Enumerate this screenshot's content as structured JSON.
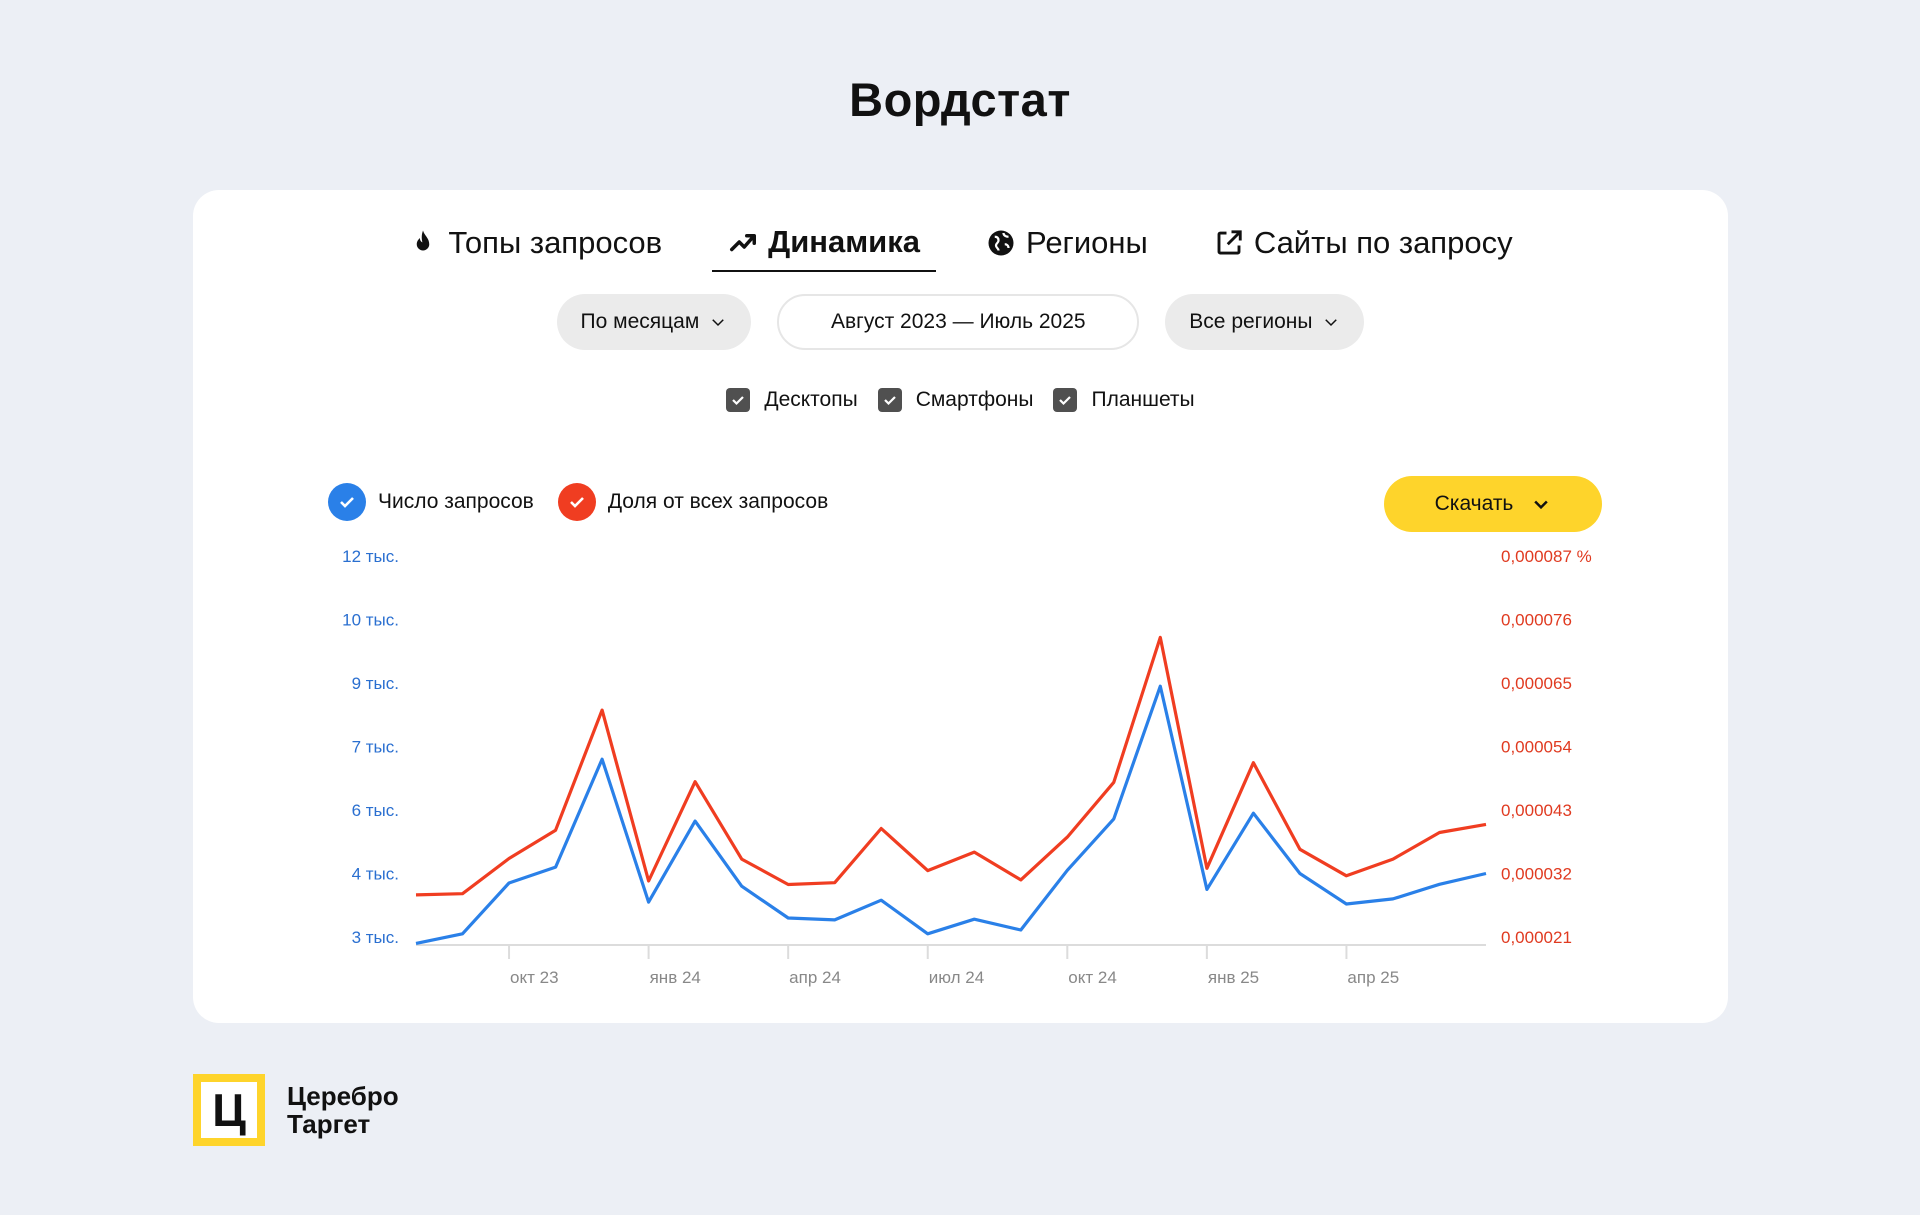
{
  "page": {
    "title": "Вордстат"
  },
  "tabs": [
    {
      "label": "Топы запросов",
      "icon": "fire-icon"
    },
    {
      "label": "Динамика",
      "icon": "trend-up-icon",
      "active": true
    },
    {
      "label": "Регионы",
      "icon": "globe-icon"
    },
    {
      "label": "Сайты по запросу",
      "icon": "external-link-icon"
    }
  ],
  "filters": {
    "period": "По месяцам",
    "range": "Август 2023 — Июль 2025",
    "region": "Все регионы"
  },
  "devices": [
    {
      "label": "Десктопы",
      "checked": true
    },
    {
      "label": "Смартфоны",
      "checked": true
    },
    {
      "label": "Планшеты",
      "checked": true
    }
  ],
  "legend": {
    "count_label": "Число запросов",
    "share_label": "Доля от всех запросов"
  },
  "download_label": "Скачать",
  "colors": {
    "blue": "#2a80e8",
    "red": "#f03d21",
    "yellow": "#fed42b"
  },
  "chart_data": {
    "type": "line",
    "x_ticks": [
      "окт 23",
      "янв 24",
      "апр 24",
      "июл 24",
      "окт 24",
      "янв 25",
      "апр 25"
    ],
    "x_tick_month_index": [
      2,
      5,
      8,
      11,
      14,
      17,
      20
    ],
    "left_axis": {
      "tick_labels": [
        "3 тыс.",
        "4 тыс.",
        "6 тыс.",
        "7 тыс.",
        "9 тыс.",
        "10 тыс.",
        "12 тыс."
      ],
      "tick_values": [
        3000,
        4000,
        6000,
        7000,
        9000,
        10000,
        12000
      ],
      "ylim": [
        2900,
        12000
      ]
    },
    "right_axis": {
      "tick_labels": [
        "0,000021",
        "0,000032",
        "0,000043",
        "0,000054",
        "0,000065",
        "0,000076",
        "0,000087 %"
      ],
      "tick_values": [
        2.1e-05,
        3.2e-05,
        4.3e-05,
        5.4e-05,
        6.5e-05,
        7.6e-05,
        8.7e-05
      ],
      "ylim": [
        2e-05,
        8.7e-05
      ]
    },
    "series": [
      {
        "name": "Число запросов",
        "axis": "left",
        "color": "#2a80e8",
        "values": [
          2900,
          3050,
          3850,
          4200,
          6800,
          3550,
          5650,
          3800,
          3300,
          3270,
          3580,
          3050,
          3280,
          3110,
          4100,
          5720,
          8900,
          3750,
          5900,
          4000,
          3520,
          3600,
          3830,
          4000
        ]
      },
      {
        "name": "Доля от всех запросов",
        "axis": "left",
        "color": "#f03d21",
        "values": [
          2.83e-05,
          2.85e-05,
          3.46e-05,
          3.95e-05,
          6.03e-05,
          3.07e-05,
          4.79e-05,
          3.45e-05,
          3.01e-05,
          3.04e-05,
          3.98e-05,
          3.25e-05,
          3.57e-05,
          3.09e-05,
          3.83e-05,
          4.78e-05,
          7.29e-05,
          3.29e-05,
          5.12e-05,
          3.62e-05,
          3.16e-05,
          3.45e-05,
          3.91e-05,
          4.05e-05
        ]
      }
    ]
  },
  "logo": {
    "mark": "Ц",
    "line1": "Церебро",
    "line2": "Таргет"
  }
}
